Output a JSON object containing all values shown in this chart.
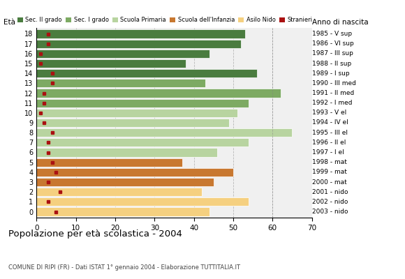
{
  "ages": [
    18,
    17,
    16,
    15,
    14,
    13,
    12,
    11,
    10,
    9,
    8,
    7,
    6,
    5,
    4,
    3,
    2,
    1,
    0
  ],
  "values": [
    53,
    52,
    44,
    38,
    56,
    43,
    62,
    54,
    51,
    49,
    65,
    54,
    46,
    37,
    50,
    45,
    42,
    54,
    44
  ],
  "stranieri": [
    3,
    3,
    1,
    1,
    4,
    4,
    2,
    2,
    1,
    2,
    4,
    3,
    3,
    4,
    5,
    3,
    6,
    3,
    5
  ],
  "categories": {
    "sec2": [
      18,
      17,
      16,
      15,
      14
    ],
    "sec1": [
      13,
      12,
      11
    ],
    "primaria": [
      10,
      9,
      8,
      7,
      6
    ],
    "infanzia": [
      5,
      4,
      3
    ],
    "nido": [
      2,
      1,
      0
    ]
  },
  "colors": {
    "sec2": "#4a7c3f",
    "sec1": "#7daa63",
    "primaria": "#b8d4a0",
    "infanzia": "#c87830",
    "nido": "#f5d080",
    "stranieri": "#aa1111"
  },
  "anno_di_nascita": {
    "18": "1985 - V sup",
    "17": "1986 - VI sup",
    "16": "1987 - III sup",
    "15": "1988 - II sup",
    "14": "1989 - I sup",
    "13": "1990 - III med",
    "12": "1991 - II med",
    "11": "1992 - I med",
    "10": "1993 - V el",
    "9": "1994 - IV el",
    "8": "1995 - III el",
    "7": "1996 - II el",
    "6": "1997 - I el",
    "5": "1998 - mat",
    "4": "1999 - mat",
    "3": "2000 - mat",
    "2": "2001 - nido",
    "1": "2002 - nido",
    "0": "2003 - nido"
  },
  "title": "Popolazione per età scolastica - 2004",
  "subtitle": "COMUNE DI RIPI (FR) - Dati ISTAT 1° gennaio 2004 - Elaborazione TUTTITALIA.IT",
  "xlabel_eta": "Età",
  "xlabel_anno": "Anno di nascita",
  "xlim": [
    0,
    70
  ],
  "xticks": [
    0,
    10,
    20,
    30,
    40,
    50,
    60,
    70
  ],
  "legend_labels": [
    "Sec. II grado",
    "Sec. I grado",
    "Scuola Primaria",
    "Scuola dell'Infanzia",
    "Asilo Nido",
    "Stranieri"
  ],
  "figsize": [
    5.8,
    4.0
  ],
  "dpi": 100
}
